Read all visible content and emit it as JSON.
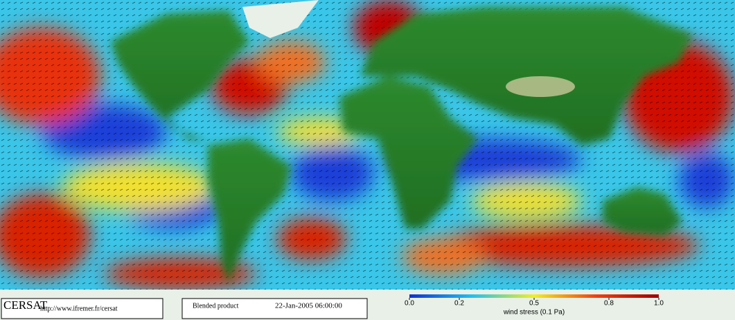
{
  "header": {
    "logo": "CERSAT",
    "url": "http://www.ifremer.fr/cersat",
    "product": "Blended product",
    "timestamp": "22-Jan-2005 06:00:00"
  },
  "colorbar": {
    "label": "wind stress (0.1 Pa)",
    "lim": [
      0,
      1
    ],
    "ticks": [
      {
        "value": 0,
        "label": "0.0"
      },
      {
        "value": 0.2,
        "label": "0.2"
      },
      {
        "value": 0.5,
        "label": "0.5"
      },
      {
        "value": 0.8,
        "label": "0.8"
      },
      {
        "value": 1,
        "label": "1.0"
      }
    ]
  }
}
